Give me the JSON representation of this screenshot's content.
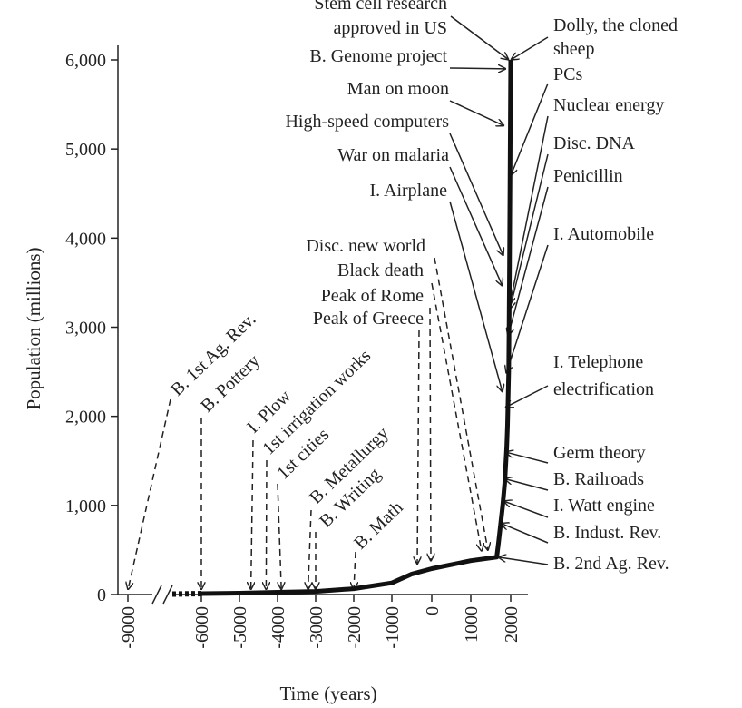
{
  "chart_data": {
    "type": "line",
    "xlabel": "Time (years)",
    "ylabel": "Population (millions)",
    "xlim": [
      -9000,
      2000
    ],
    "ylim": [
      0,
      6000
    ],
    "x_ticks": [
      -9000,
      -6000,
      -5000,
      -4000,
      -3000,
      -2000,
      -1000,
      0,
      1000,
      2000
    ],
    "x_tick_labels": [
      "-9000",
      "-6000",
      "-5000",
      "-4000",
      "-3000",
      "-2000",
      "-1000",
      "0",
      "1000",
      "2000"
    ],
    "y_ticks": [
      0,
      1000,
      2000,
      3000,
      4000,
      5000,
      6000
    ],
    "y_tick_labels": [
      "0",
      "1,000",
      "2,000",
      "3,000",
      "4,000",
      "5,000",
      "6,000"
    ],
    "axis_break": "between -9000 and -6000",
    "grid": false,
    "series": [
      {
        "x": [
          -6500,
          -6000,
          -5000,
          -4000,
          -3000,
          -2000,
          -1000,
          -500,
          0,
          1000,
          1650,
          1700,
          1750,
          1800,
          1850,
          1900,
          1920,
          1950,
          1960,
          1970,
          1980,
          1990,
          2000
        ],
        "y": [
          5,
          10,
          15,
          25,
          35,
          65,
          130,
          230,
          290,
          380,
          420,
          600,
          800,
          1000,
          1250,
          1650,
          1900,
          2500,
          3000,
          3700,
          4400,
          5300,
          6000
        ]
      }
    ],
    "annotations": [
      {
        "text": "B. 1st Ag. Rev.",
        "year": -9000,
        "side": "left",
        "style": "dashed",
        "rotated": true
      },
      {
        "text": "B. Pottery",
        "year": -6000,
        "side": "left",
        "style": "dashed",
        "rotated": true
      },
      {
        "text": "I. Plow",
        "year": -4700,
        "side": "left",
        "style": "dashed",
        "rotated": true
      },
      {
        "text": "1st irrigation works",
        "year": -4300,
        "side": "left",
        "style": "dashed",
        "rotated": true
      },
      {
        "text": "1st cities",
        "year": -3900,
        "side": "left",
        "style": "dashed",
        "rotated": true
      },
      {
        "text": "B. Metallurgy",
        "year": -3200,
        "side": "left",
        "style": "dashed",
        "rotated": true
      },
      {
        "text": "B. Writing",
        "year": -3000,
        "side": "left",
        "style": "dashed",
        "rotated": true
      },
      {
        "text": "B. Math",
        "year": -2000,
        "side": "left",
        "style": "dashed",
        "rotated": true
      },
      {
        "text": "Peak of Greece",
        "year": -300,
        "side": "left",
        "style": "dashed"
      },
      {
        "text": "Peak of Rome",
        "year": 0,
        "side": "left",
        "style": "dashed"
      },
      {
        "text": "Black death",
        "year": 1350,
        "side": "left",
        "style": "dashed"
      },
      {
        "text": "Disc. new world",
        "year": 1492,
        "side": "left",
        "style": "dashed"
      },
      {
        "text": "I. Airplane",
        "year": 1903,
        "side": "left",
        "style": "solid"
      },
      {
        "text": "War on malaria",
        "year": 1955,
        "side": "left",
        "style": "solid"
      },
      {
        "text": "High-speed computers",
        "year": 1960,
        "side": "left",
        "style": "solid"
      },
      {
        "text": "Man on moon",
        "year": 1969,
        "side": "left",
        "style": "solid"
      },
      {
        "text": "B. Genome project",
        "year": 1990,
        "side": "left",
        "style": "solid"
      },
      {
        "text": "Stem cell research approved in US",
        "year": 2001,
        "side": "left",
        "style": "solid"
      },
      {
        "text": "Dolly, the cloned sheep",
        "year": 1996,
        "side": "right",
        "style": "solid"
      },
      {
        "text": "PCs",
        "year": 1980,
        "side": "right",
        "style": "solid"
      },
      {
        "text": "Nuclear energy",
        "year": 1945,
        "side": "right",
        "style": "solid"
      },
      {
        "text": "Disc. DNA",
        "year": 1953,
        "side": "right",
        "style": "solid"
      },
      {
        "text": "Penicillin",
        "year": 1928,
        "side": "right",
        "style": "solid"
      },
      {
        "text": "I. Automobile",
        "year": 1886,
        "side": "right",
        "style": "solid"
      },
      {
        "text": "I. Telephone electrification",
        "year": 1876,
        "side": "right",
        "style": "solid"
      },
      {
        "text": "Germ theory",
        "year": 1860,
        "side": "right",
        "style": "solid"
      },
      {
        "text": "B. Railroads",
        "year": 1825,
        "side": "right",
        "style": "solid"
      },
      {
        "text": "I. Watt engine",
        "year": 1769,
        "side": "right",
        "style": "solid"
      },
      {
        "text": "B. Indust. Rev.",
        "year": 1760,
        "side": "right",
        "style": "solid"
      },
      {
        "text": "B. 2nd Ag. Rev.",
        "year": 1700,
        "side": "right",
        "style": "solid"
      }
    ]
  }
}
